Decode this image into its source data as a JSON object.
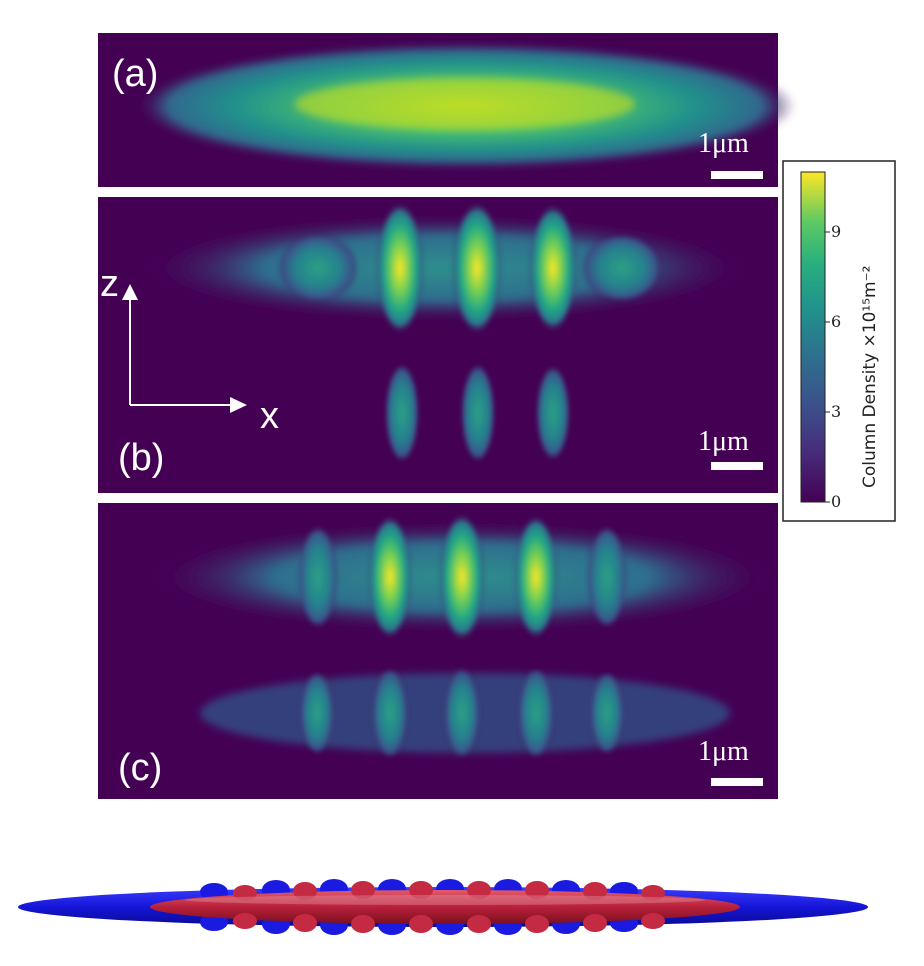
{
  "panels": [
    {
      "label": "(a)",
      "scale_bar": "1μm"
    },
    {
      "label": "(b)",
      "scale_bar": "1μm"
    },
    {
      "label": "(c)",
      "scale_bar": "1μm"
    }
  ],
  "axes": {
    "z_label": "z",
    "x_label": "x"
  },
  "colorbar": {
    "label": "Column Density ×10¹⁵m⁻²",
    "ticks": [
      "0",
      "3",
      "6",
      "9"
    ],
    "range": [
      0,
      11
    ],
    "colormap": "viridis"
  },
  "colors": {
    "background": "#440154",
    "low": "#3b528b",
    "mid": "#21918c",
    "high": "#5ec962",
    "peak": "#fde725",
    "render_blue": "#1a1aee",
    "render_red": "#cc2233"
  }
}
